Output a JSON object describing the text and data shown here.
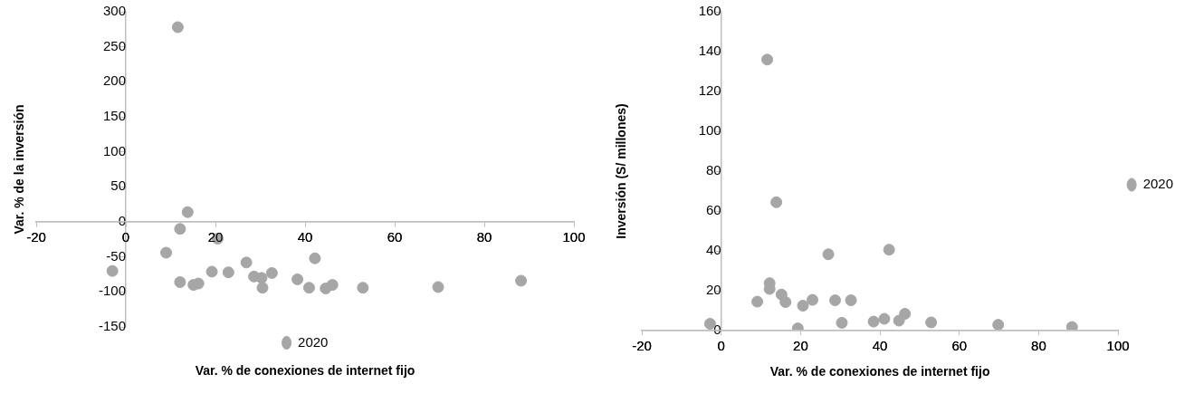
{
  "chart_data": [
    {
      "type": "scatter",
      "xlabel": "Var. % de conexiones de internet fijo",
      "ylabel": "Var. % de la inversión",
      "xlim": [
        -20,
        100
      ],
      "xticks": [
        -20,
        0,
        20,
        40,
        60,
        80,
        100
      ],
      "ylim": [
        -150,
        300
      ],
      "yticks": [
        -150,
        -100,
        -50,
        0,
        50,
        100,
        150,
        200,
        250,
        300
      ],
      "grid": false,
      "legend": "bottom",
      "marker": "circle",
      "series": [
        {
          "name": "2020",
          "color": "#a6a6a6",
          "x": [
            -3,
            9.0,
            12.1,
            12.1,
            11.6,
            13.8,
            15.1,
            16.2,
            19.2,
            20.5,
            22.9,
            26.9,
            28.6,
            30.3,
            30.5,
            32.6,
            38.3,
            40.9,
            42.2,
            44.6,
            46.1,
            52.9,
            69.7,
            88.2
          ],
          "values": [
            -70,
            -44,
            -10,
            -86,
            278,
            14,
            -90,
            -88,
            -71,
            -24,
            -72,
            -58,
            -78,
            -80,
            -94,
            -73,
            -82,
            -94,
            -52,
            -95,
            -90,
            -94,
            -93,
            -84
          ]
        }
      ]
    },
    {
      "type": "scatter",
      "xlabel": "Var. % de conexiones de internet fijo",
      "ylabel": "Inversión (S/ millones)",
      "xlim": [
        -20,
        100
      ],
      "xticks": [
        -20,
        0,
        20,
        40,
        60,
        80,
        100
      ],
      "ylim": [
        0,
        160
      ],
      "yticks": [
        0,
        20,
        40,
        60,
        80,
        100,
        120,
        140,
        160
      ],
      "grid": false,
      "legend": "right",
      "marker": "circle",
      "series": [
        {
          "name": "2020",
          "color": "#a6a6a6",
          "x": [
            -2.8,
            9.1,
            12.2,
            12.2,
            11.6,
            13.9,
            15.2,
            16.2,
            19.3,
            20.6,
            23.0,
            27.0,
            28.7,
            30.4,
            32.7,
            38.4,
            41.1,
            42.3,
            44.8,
            46.3,
            52.9,
            69.8,
            88.4
          ],
          "values": [
            3.4,
            14.5,
            23.8,
            20.9,
            136,
            64.4,
            18.1,
            14.3,
            1.1,
            12.5,
            15.4,
            38.3,
            15.2,
            3.9,
            15.2,
            4.5,
            5.9,
            40.6,
            5.0,
            8.4,
            4.1,
            2.9,
            1.8
          ]
        }
      ]
    }
  ]
}
